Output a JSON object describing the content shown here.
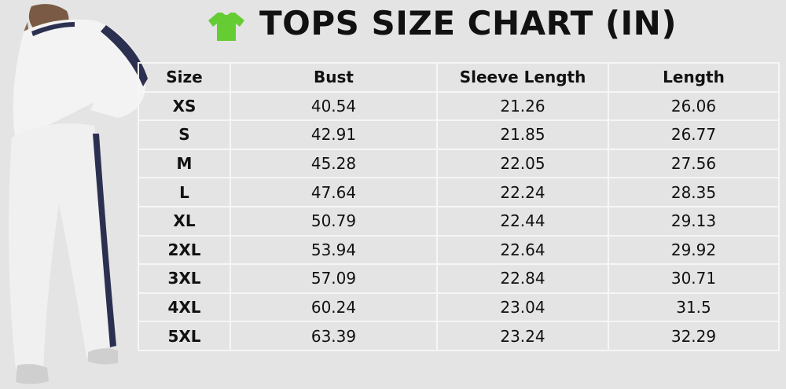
{
  "header": {
    "title": "TOPS SIZE CHART (IN)"
  },
  "table": {
    "columns": [
      "Size",
      "Bust",
      "Sleeve Length",
      "Length"
    ],
    "rows": [
      [
        "XS",
        "40.54",
        "21.26",
        "26.06"
      ],
      [
        "S",
        "42.91",
        "21.85",
        "26.77"
      ],
      [
        "M",
        "45.28",
        "22.05",
        "27.56"
      ],
      [
        "L",
        "47.64",
        "22.24",
        "28.35"
      ],
      [
        "XL",
        "50.79",
        "22.44",
        "29.13"
      ],
      [
        "2XL",
        "53.94",
        "22.64",
        "29.92"
      ],
      [
        "3XL",
        "57.09",
        "22.84",
        "30.71"
      ],
      [
        "4XL",
        "60.24",
        "23.04",
        "31.5"
      ],
      [
        "5XL",
        "63.39",
        "23.24",
        "32.29"
      ]
    ]
  }
}
